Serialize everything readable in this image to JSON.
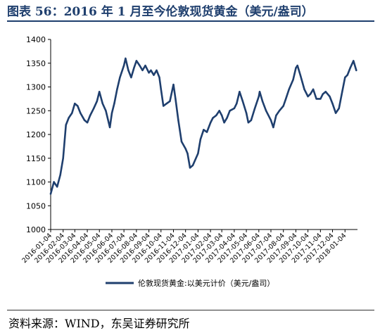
{
  "figure": {
    "title": "图表 56：2016 年 1 月至今伦敦现货黄金（美元/盎司）",
    "source": "资料来源：WIND，东吴证券研究所"
  },
  "colors": {
    "line": "#1f3f6e",
    "title": "#1f3f6e",
    "axis": "#000000"
  },
  "chart_data": {
    "type": "line",
    "title": "",
    "xlabel": "",
    "ylabel": "",
    "ylim": [
      1000,
      1400
    ],
    "yticks": [
      1000,
      1050,
      1100,
      1150,
      1200,
      1250,
      1300,
      1350,
      1400
    ],
    "xticks": [
      "2016-01-04",
      "2016-02-04",
      "2016-03-04",
      "2016-04-04",
      "2016-05-04",
      "2016-06-04",
      "2016-07-04",
      "2016-08-04",
      "2016-09-04",
      "2016-10-04",
      "2016-11-04",
      "2016-12-04",
      "2017-01-04",
      "2017-02-04",
      "2017-03-04",
      "2017-04-04",
      "2017-05-04",
      "2017-06-04",
      "2017-07-04",
      "2017-08-04",
      "2017-09-04",
      "2017-10-04",
      "2017-11-04",
      "2017-12-04",
      "2018-01-04"
    ],
    "grid": false,
    "legend_position": "bottom-center",
    "series": [
      {
        "name": "伦敦现货黄金:以美元计价（美元/盎司）",
        "x": [
          "2016-01-04",
          "2016-01-12",
          "2016-01-20",
          "2016-01-28",
          "2016-02-04",
          "2016-02-11",
          "2016-02-18",
          "2016-02-26",
          "2016-03-04",
          "2016-03-11",
          "2016-03-18",
          "2016-03-28",
          "2016-04-04",
          "2016-04-11",
          "2016-04-20",
          "2016-04-28",
          "2016-05-04",
          "2016-05-12",
          "2016-05-20",
          "2016-05-30",
          "2016-06-04",
          "2016-06-10",
          "2016-06-17",
          "2016-06-24",
          "2016-07-04",
          "2016-07-08",
          "2016-07-15",
          "2016-07-22",
          "2016-07-29",
          "2016-08-04",
          "2016-08-12",
          "2016-08-19",
          "2016-08-26",
          "2016-09-04",
          "2016-09-09",
          "2016-09-16",
          "2016-09-23",
          "2016-09-30",
          "2016-10-04",
          "2016-10-10",
          "2016-10-18",
          "2016-10-26",
          "2016-11-04",
          "2016-11-09",
          "2016-11-16",
          "2016-11-24",
          "2016-12-04",
          "2016-12-09",
          "2016-12-15",
          "2016-12-22",
          "2017-01-04",
          "2017-01-10",
          "2017-01-18",
          "2017-01-26",
          "2017-02-04",
          "2017-02-10",
          "2017-02-18",
          "2017-02-26",
          "2017-03-04",
          "2017-03-10",
          "2017-03-17",
          "2017-03-24",
          "2017-04-04",
          "2017-04-10",
          "2017-04-17",
          "2017-04-25",
          "2017-05-04",
          "2017-05-09",
          "2017-05-16",
          "2017-05-25",
          "2017-06-04",
          "2017-06-06",
          "2017-06-13",
          "2017-06-22",
          "2017-07-04",
          "2017-07-10",
          "2017-07-17",
          "2017-07-25",
          "2017-08-04",
          "2017-08-10",
          "2017-08-18",
          "2017-08-28",
          "2017-09-04",
          "2017-09-08",
          "2017-09-15",
          "2017-09-25",
          "2017-10-04",
          "2017-10-10",
          "2017-10-17",
          "2017-10-25",
          "2017-11-04",
          "2017-11-10",
          "2017-11-17",
          "2017-11-27",
          "2017-12-04",
          "2017-12-12",
          "2017-12-20",
          "2017-12-28",
          "2018-01-04",
          "2018-01-10",
          "2018-01-17",
          "2018-01-25",
          "2018-02-01"
        ],
        "values": [
          1075,
          1100,
          1090,
          1115,
          1150,
          1220,
          1235,
          1245,
          1265,
          1260,
          1245,
          1230,
          1225,
          1240,
          1255,
          1270,
          1290,
          1265,
          1250,
          1215,
          1245,
          1265,
          1295,
          1320,
          1345,
          1360,
          1335,
          1320,
          1340,
          1355,
          1345,
          1335,
          1345,
          1330,
          1335,
          1325,
          1335,
          1320,
          1295,
          1260,
          1265,
          1270,
          1305,
          1275,
          1230,
          1185,
          1170,
          1160,
          1130,
          1135,
          1160,
          1190,
          1210,
          1205,
          1225,
          1235,
          1240,
          1250,
          1240,
          1225,
          1235,
          1250,
          1255,
          1265,
          1290,
          1270,
          1245,
          1225,
          1230,
          1255,
          1280,
          1290,
          1270,
          1250,
          1230,
          1215,
          1240,
          1250,
          1260,
          1275,
          1295,
          1315,
          1340,
          1345,
          1325,
          1295,
          1280,
          1285,
          1295,
          1275,
          1275,
          1285,
          1290,
          1280,
          1265,
          1245,
          1255,
          1290,
          1320,
          1325,
          1340,
          1355,
          1335
        ]
      }
    ]
  }
}
